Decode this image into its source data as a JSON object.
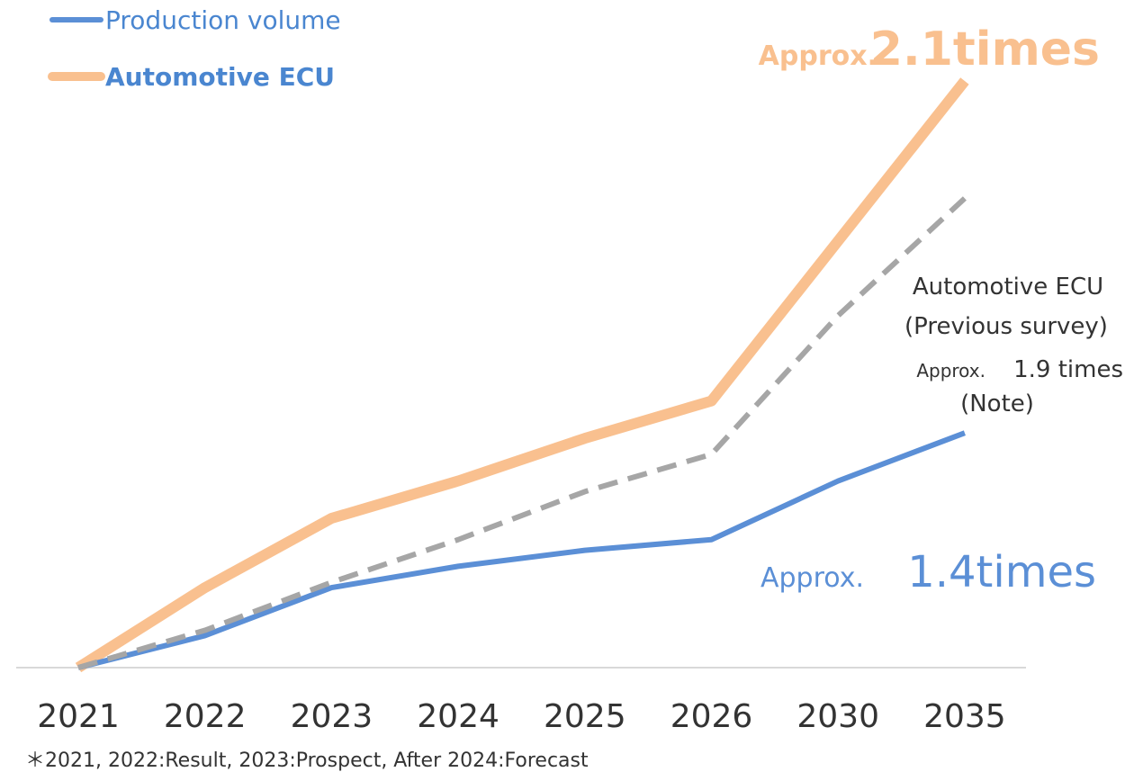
{
  "chart_data": {
    "type": "line",
    "categories": [
      "2021",
      "2022",
      "2023",
      "2024",
      "2025",
      "2026",
      "2030",
      "2035"
    ],
    "series": [
      {
        "name": "Production volume",
        "color": "#5b8fd6",
        "values": [
          1.0,
          1.06,
          1.15,
          1.19,
          1.22,
          1.24,
          1.35,
          1.44
        ]
      },
      {
        "name": "Automotive ECU",
        "color": "#f9c08f",
        "values": [
          1.0,
          1.15,
          1.28,
          1.35,
          1.43,
          1.5,
          1.8,
          2.1
        ]
      },
      {
        "color": "#a6a6a6",
        "dashed": true,
        "values": [
          1.0,
          1.07,
          1.16,
          1.24,
          1.33,
          1.4,
          1.66,
          1.88
        ]
      }
    ],
    "ylim": [
      1.0,
      2.1
    ],
    "annotations": {
      "ecu_prefix": "Approx.",
      "ecu_ratio": "2.1times",
      "prod_prefix": "Approx.",
      "prod_ratio": "1.4times",
      "prev_line1": "Automotive ECU",
      "prev_line2": "(Previous survey)",
      "prev_prefix": "Approx.",
      "prev_ratio": "1.9 times",
      "prev_note": "(Note)"
    },
    "footnote": "＊2021, 2022:Result, 2023:Prospect, After 2024:Forecast"
  }
}
